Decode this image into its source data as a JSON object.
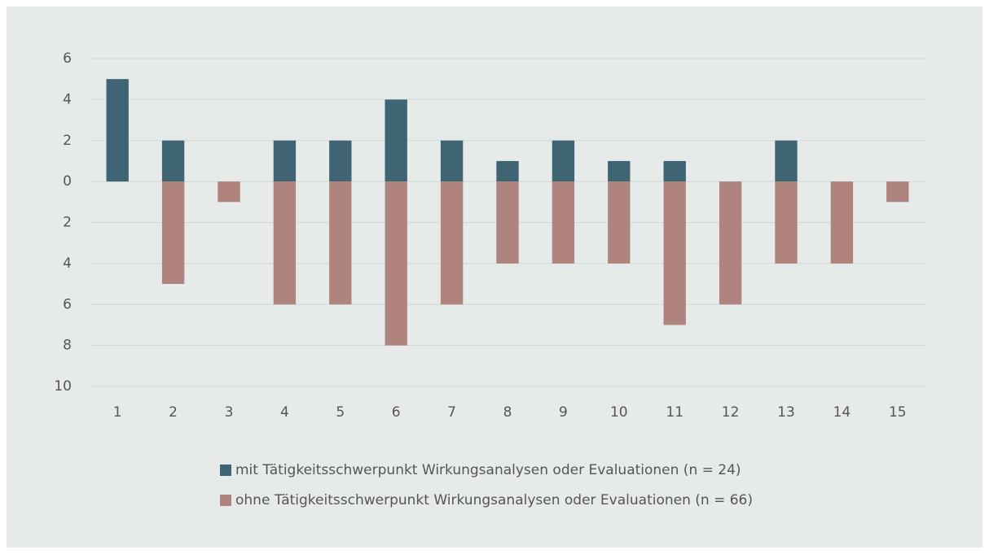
{
  "chart_data": {
    "type": "bar",
    "categories": [
      "1",
      "2",
      "3",
      "4",
      "5",
      "6",
      "7",
      "8",
      "9",
      "10",
      "11",
      "12",
      "13",
      "14",
      "15"
    ],
    "series": [
      {
        "name": "mit Tätigkeitsschwerpunkt Wirkungsanalysen oder Evaluationen (n = 24)",
        "color": "#3f6474",
        "values": [
          5,
          2,
          0,
          2,
          2,
          4,
          2,
          1,
          2,
          1,
          1,
          0,
          2,
          0,
          0
        ]
      },
      {
        "name": "ohne Tätigkeitsschwerpunkt Wirkungsanalysen oder Evaluationen (n = 66)",
        "color": "#b0847e",
        "values": [
          0,
          -5,
          -1,
          -6,
          -6,
          -8,
          -6,
          -4,
          -4,
          -4,
          -7,
          -6,
          -4,
          -4,
          -1
        ]
      }
    ],
    "ylim": [
      -10,
      6
    ],
    "yticks": [
      6,
      4,
      2,
      0,
      {
        "value": -2,
        "label": "2"
      },
      {
        "value": -4,
        "label": "4"
      },
      {
        "value": -6,
        "label": "6"
      },
      {
        "value": -8,
        "label": "8"
      },
      {
        "value": -10,
        "label": "10"
      }
    ],
    "grid": true,
    "legend": "bottom"
  }
}
